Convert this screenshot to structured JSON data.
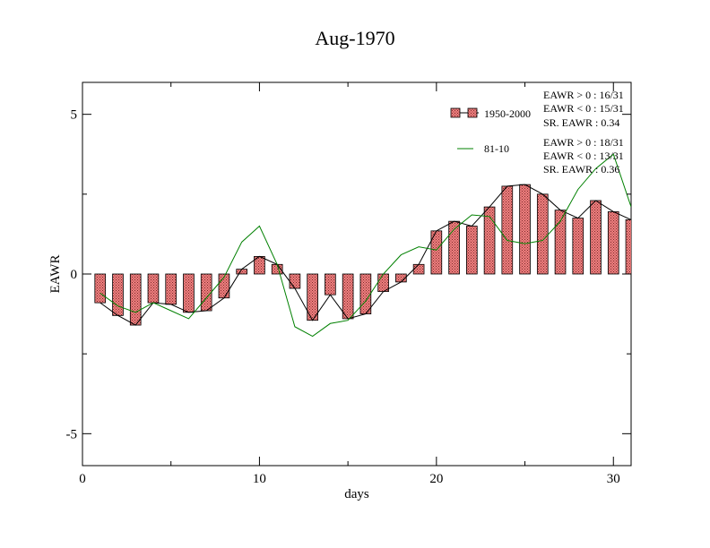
{
  "chart_data": {
    "type": "bar",
    "title": "Aug-1970",
    "xlabel": "days",
    "ylabel": "EAWR",
    "xlim": [
      0,
      31
    ],
    "ylim": [
      -6,
      6
    ],
    "xticks": [
      0,
      10,
      20,
      30
    ],
    "yticks": [
      -5,
      0,
      5
    ],
    "xtick_labels": [
      "0",
      "10",
      "20",
      "30"
    ],
    "ytick_labels": [
      "-5",
      "0",
      "5"
    ],
    "grid": false,
    "legend_position": "top-right",
    "x": [
      1,
      2,
      3,
      4,
      5,
      6,
      7,
      8,
      9,
      10,
      11,
      12,
      13,
      14,
      15,
      16,
      17,
      18,
      19,
      20,
      21,
      22,
      23,
      24,
      25,
      26,
      27,
      28,
      29,
      30,
      31
    ],
    "series": [
      {
        "name": "1950-2000",
        "kind": "bar",
        "color": "#f08080",
        "values": [
          -0.9,
          -1.3,
          -1.6,
          -0.9,
          -0.95,
          -1.2,
          -1.15,
          -0.75,
          0.15,
          0.55,
          0.3,
          -0.45,
          -1.45,
          -0.65,
          -1.4,
          -1.25,
          -0.55,
          -0.25,
          0.3,
          1.35,
          1.65,
          1.5,
          2.1,
          2.75,
          2.8,
          2.5,
          2.0,
          1.75,
          2.3,
          1.95,
          1.7
        ]
      },
      {
        "name": "81-10",
        "kind": "line",
        "color": "#008000",
        "values": [
          -0.6,
          -1.0,
          -1.2,
          -0.9,
          -1.15,
          -1.4,
          -0.75,
          -0.1,
          1.0,
          1.5,
          0.3,
          -1.65,
          -1.95,
          -1.55,
          -1.45,
          -0.85,
          0.0,
          0.6,
          0.85,
          0.75,
          1.4,
          1.85,
          1.8,
          1.05,
          0.95,
          1.05,
          1.65,
          2.65,
          3.3,
          3.75,
          2.1
        ]
      }
    ],
    "annotations": {
      "group1": [
        "EAWR > 0 : 16/31",
        "EAWR < 0 : 15/31",
        "SR. EAWR :  0.34"
      ],
      "group2": [
        "EAWR > 0 : 18/31",
        "EAWR < 0 : 13/31",
        "SR. EAWR :  0.36"
      ]
    }
  }
}
